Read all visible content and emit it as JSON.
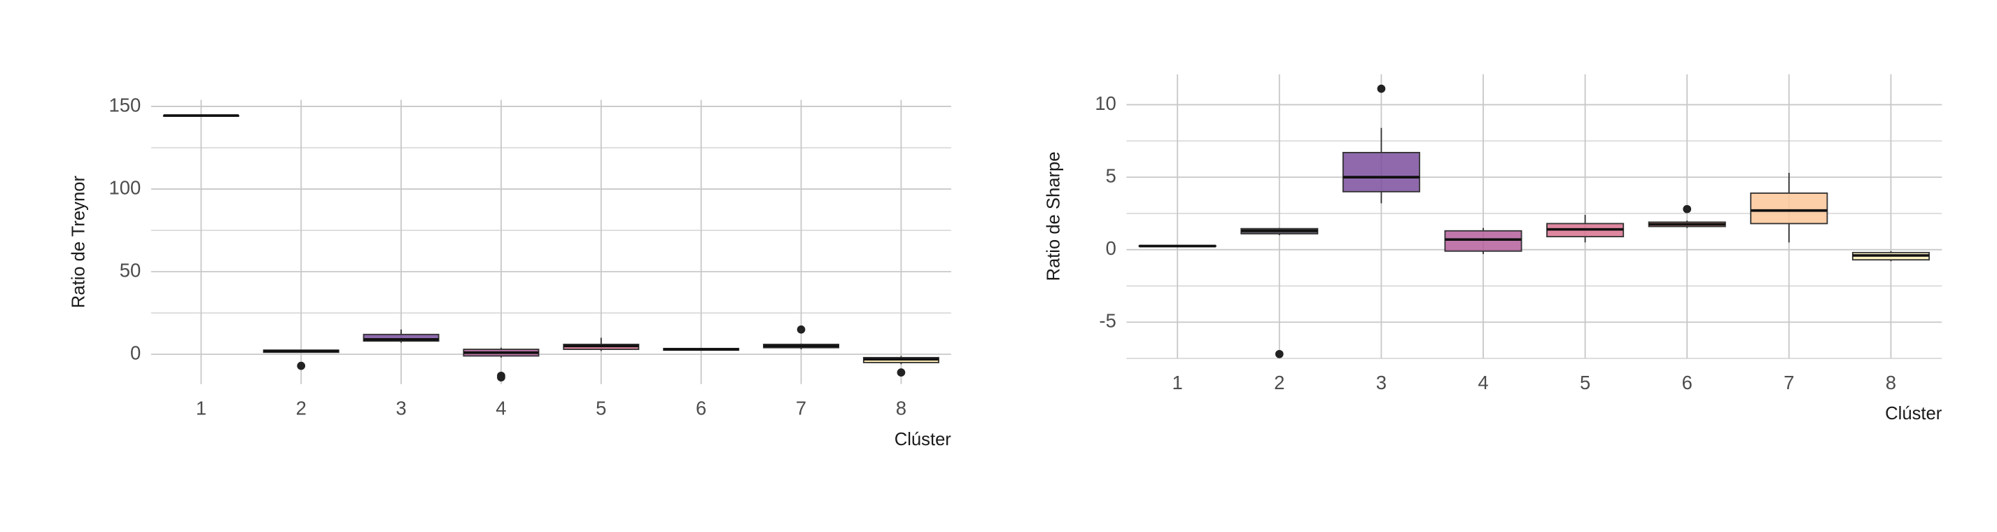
{
  "chart_data": [
    {
      "type": "box",
      "xlabel": "Clúster",
      "ylabel": "Ratio de Treynor",
      "categories": [
        "1",
        "2",
        "3",
        "4",
        "5",
        "6",
        "7",
        "8"
      ],
      "colors": [
        "#1d1147",
        "#51127c",
        "#7b4f9e",
        "#b5609c",
        "#d9728f",
        "#e88a6e",
        "#fcb57e",
        "#fce8a6"
      ],
      "boxes": [
        {
          "min": 144.5,
          "q1": 144.5,
          "median": 144.5,
          "q3": 144.5,
          "max": 144.5,
          "outliers": []
        },
        {
          "min": 1,
          "q1": 1.2,
          "median": 2,
          "q3": 2.5,
          "max": 2.8,
          "outliers": [
            -7
          ]
        },
        {
          "min": 7,
          "q1": 8,
          "median": 9,
          "q3": 12,
          "max": 15,
          "outliers": []
        },
        {
          "min": -2,
          "q1": -1,
          "median": 1,
          "q3": 3,
          "max": 4,
          "outliers": [
            -13,
            -14
          ]
        },
        {
          "min": 2,
          "q1": 3,
          "median": 5,
          "q3": 6,
          "max": 10,
          "outliers": []
        },
        {
          "min": 2.3,
          "q1": 2.5,
          "median": 3,
          "q3": 3.5,
          "max": 3.8,
          "outliers": []
        },
        {
          "min": 3,
          "q1": 4,
          "median": 5,
          "q3": 6,
          "max": 6.5,
          "outliers": [
            15
          ]
        },
        {
          "min": -6,
          "q1": -5,
          "median": -3,
          "q3": -2,
          "max": -1,
          "outliers": [
            -11
          ]
        }
      ],
      "ylim": [
        -18,
        154
      ],
      "yticks": [
        0,
        50,
        100,
        150
      ],
      "minor_yticks": [
        25,
        75,
        125
      ],
      "grid": true
    },
    {
      "type": "box",
      "xlabel": "Clúster",
      "ylabel": "Ratio de Sharpe",
      "categories": [
        "1",
        "2",
        "3",
        "4",
        "5",
        "6",
        "7",
        "8"
      ],
      "colors": [
        "#1d1147",
        "#4a4a5a",
        "#7b4f9e",
        "#b5609c",
        "#d9728f",
        "#e88a6e",
        "#fcc79a",
        "#fcf0b8"
      ],
      "boxes": [
        {
          "min": 0.2,
          "q1": 0.22,
          "median": 0.25,
          "q3": 0.28,
          "max": 0.3,
          "outliers": []
        },
        {
          "min": 1.0,
          "q1": 1.1,
          "median": 1.3,
          "q3": 1.45,
          "max": 1.5,
          "outliers": [
            -7.2
          ]
        },
        {
          "min": 3.2,
          "q1": 4.0,
          "median": 5.0,
          "q3": 6.7,
          "max": 8.4,
          "outliers": [
            11.1
          ]
        },
        {
          "min": -0.3,
          "q1": -0.1,
          "median": 0.7,
          "q3": 1.3,
          "max": 1.5,
          "outliers": []
        },
        {
          "min": 0.5,
          "q1": 0.9,
          "median": 1.4,
          "q3": 1.8,
          "max": 2.4,
          "outliers": []
        },
        {
          "min": 1.5,
          "q1": 1.6,
          "median": 1.75,
          "q3": 1.9,
          "max": 2.0,
          "outliers": [
            2.8
          ]
        },
        {
          "min": 0.5,
          "q1": 1.8,
          "median": 2.7,
          "q3": 3.9,
          "max": 5.3,
          "outliers": []
        },
        {
          "min": -0.8,
          "q1": -0.7,
          "median": -0.4,
          "q3": -0.2,
          "max": -0.1,
          "outliers": []
        }
      ],
      "ylim": [
        -7.5,
        12.1
      ],
      "yticks": [
        -5,
        0,
        5,
        10
      ],
      "minor_yticks": [
        -7.5,
        -2.5,
        2.5,
        7.5
      ],
      "grid": true
    }
  ]
}
